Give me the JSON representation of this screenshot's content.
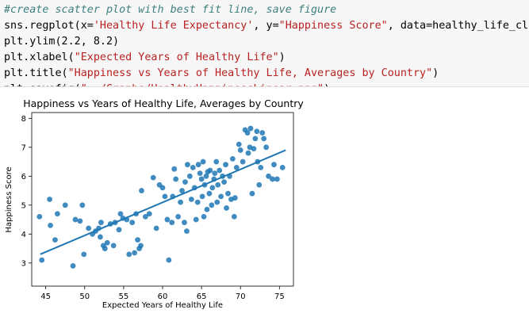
{
  "code_cell": {
    "lines": [
      [
        {
          "t": "#create scatter plot with best fit line, save figure",
          "c": "comment"
        }
      ],
      [
        {
          "t": "sns.regplot(x=",
          "c": ""
        },
        {
          "t": "'Healthy Life Expectancy'",
          "c": "str"
        },
        {
          "t": ", y=",
          "c": ""
        },
        {
          "t": "\"Happiness Score\"",
          "c": "str"
        },
        {
          "t": ", data=healthy_life_clean,",
          "c": ""
        }
      ],
      [
        {
          "t": "plt.ylim(2.2, 8.2)",
          "c": ""
        }
      ],
      [
        {
          "t": "plt.xlabel(",
          "c": ""
        },
        {
          "t": "\"Expected Years of Healthy Life\"",
          "c": "str"
        },
        {
          "t": ")",
          "c": ""
        }
      ],
      [
        {
          "t": "plt.title(",
          "c": ""
        },
        {
          "t": "\"Happiness vs Years of Healthy Life, Averages by Country\"",
          "c": "str"
        },
        {
          "t": ")",
          "c": ""
        }
      ],
      [
        {
          "t": "plt.savefig(",
          "c": ""
        },
        {
          "t": "\"../Graphs/HealthyHappinessLinear.png\"",
          "c": "str"
        },
        {
          "t": ")",
          "c": ""
        }
      ]
    ]
  },
  "chart_data": {
    "type": "scatter",
    "title": "Happiness vs Years of Healthy Life, Averages by Country",
    "xlabel": "Expected Years of Healthy Life",
    "ylabel": "Happiness Score",
    "xlim": [
      43.2,
      76.8
    ],
    "ylim": [
      2.2,
      8.2
    ],
    "xticks": [
      45,
      50,
      55,
      60,
      65,
      70,
      75
    ],
    "yticks": [
      3,
      4,
      5,
      6,
      7,
      8
    ],
    "point_color": "#1f77b4",
    "grid": false,
    "fit_line": {
      "x": [
        44.3,
        75.8
      ],
      "y": [
        3.3,
        6.9
      ]
    },
    "points": [
      [
        44.2,
        4.6
      ],
      [
        44.5,
        3.1
      ],
      [
        45.5,
        5.2
      ],
      [
        45.6,
        4.3
      ],
      [
        46.2,
        3.8
      ],
      [
        46.5,
        4.7
      ],
      [
        47.5,
        5.0
      ],
      [
        48.5,
        2.9
      ],
      [
        48.8,
        4.5
      ],
      [
        49.4,
        4.45
      ],
      [
        49.7,
        5.0
      ],
      [
        49.9,
        3.3
      ],
      [
        50.5,
        4.2
      ],
      [
        51.0,
        4.0
      ],
      [
        51.4,
        4.1
      ],
      [
        51.8,
        4.2
      ],
      [
        52.0,
        3.9
      ],
      [
        52.1,
        4.4
      ],
      [
        52.4,
        3.6
      ],
      [
        52.6,
        3.5
      ],
      [
        52.9,
        3.7
      ],
      [
        53.3,
        4.35
      ],
      [
        53.7,
        3.6
      ],
      [
        53.9,
        4.4
      ],
      [
        54.4,
        4.15
      ],
      [
        54.6,
        4.7
      ],
      [
        54.9,
        4.55
      ],
      [
        55.4,
        4.5
      ],
      [
        55.7,
        3.3
      ],
      [
        56.1,
        4.4
      ],
      [
        56.4,
        3.35
      ],
      [
        56.6,
        4.7
      ],
      [
        56.8,
        3.8
      ],
      [
        57.0,
        3.5
      ],
      [
        57.2,
        3.6
      ],
      [
        57.3,
        5.5
      ],
      [
        57.8,
        4.6
      ],
      [
        58.3,
        4.7
      ],
      [
        58.8,
        5.95
      ],
      [
        59.2,
        4.2
      ],
      [
        59.6,
        5.7
      ],
      [
        60.0,
        5.6
      ],
      [
        60.3,
        5.3
      ],
      [
        60.6,
        4.5
      ],
      [
        60.8,
        3.1
      ],
      [
        61.2,
        4.4
      ],
      [
        61.3,
        5.3
      ],
      [
        61.5,
        6.25
      ],
      [
        61.7,
        5.9
      ],
      [
        62.0,
        4.6
      ],
      [
        62.3,
        5.1
      ],
      [
        62.5,
        5.5
      ],
      [
        62.8,
        4.4
      ],
      [
        62.9,
        5.8
      ],
      [
        63.1,
        4.1
      ],
      [
        63.2,
        6.4
      ],
      [
        63.5,
        6.0
      ],
      [
        63.7,
        5.2
      ],
      [
        63.9,
        6.3
      ],
      [
        64.1,
        5.6
      ],
      [
        64.3,
        4.5
      ],
      [
        64.5,
        5.1
      ],
      [
        64.6,
        6.4
      ],
      [
        64.8,
        6.1
      ],
      [
        65.0,
        5.9
      ],
      [
        65.1,
        5.3
      ],
      [
        65.2,
        6.5
      ],
      [
        65.3,
        4.6
      ],
      [
        65.4,
        5.7
      ],
      [
        65.6,
        6.0
      ],
      [
        65.7,
        4.85
      ],
      [
        65.8,
        6.15
      ],
      [
        66.0,
        5.4
      ],
      [
        66.1,
        6.2
      ],
      [
        66.3,
        5.0
      ],
      [
        66.4,
        5.6
      ],
      [
        66.6,
        5.9
      ],
      [
        66.7,
        6.1
      ],
      [
        66.9,
        6.5
      ],
      [
        67.0,
        5.1
      ],
      [
        67.1,
        5.7
      ],
      [
        67.3,
        6.2
      ],
      [
        67.5,
        5.3
      ],
      [
        67.7,
        6.0
      ],
      [
        67.9,
        5.8
      ],
      [
        68.1,
        6.4
      ],
      [
        68.2,
        4.9
      ],
      [
        68.4,
        5.4
      ],
      [
        68.6,
        6.0
      ],
      [
        68.8,
        5.2
      ],
      [
        69.0,
        6.6
      ],
      [
        69.2,
        4.6
      ],
      [
        69.3,
        5.25
      ],
      [
        69.5,
        6.3
      ],
      [
        69.8,
        7.1
      ],
      [
        70.0,
        6.9
      ],
      [
        70.3,
        6.5
      ],
      [
        70.6,
        7.6
      ],
      [
        70.9,
        7.5
      ],
      [
        71.0,
        6.8
      ],
      [
        71.2,
        7.0
      ],
      [
        71.3,
        7.65
      ],
      [
        71.5,
        5.4
      ],
      [
        71.7,
        6.95
      ],
      [
        71.9,
        7.3
      ],
      [
        72.1,
        7.55
      ],
      [
        72.2,
        6.5
      ],
      [
        72.4,
        5.7
      ],
      [
        72.6,
        6.3
      ],
      [
        72.8,
        7.5
      ],
      [
        73.0,
        7.3
      ],
      [
        73.3,
        7.0
      ],
      [
        73.6,
        6.0
      ],
      [
        74.1,
        5.9
      ],
      [
        74.3,
        6.4
      ],
      [
        74.7,
        5.9
      ],
      [
        75.4,
        6.3
      ]
    ]
  }
}
